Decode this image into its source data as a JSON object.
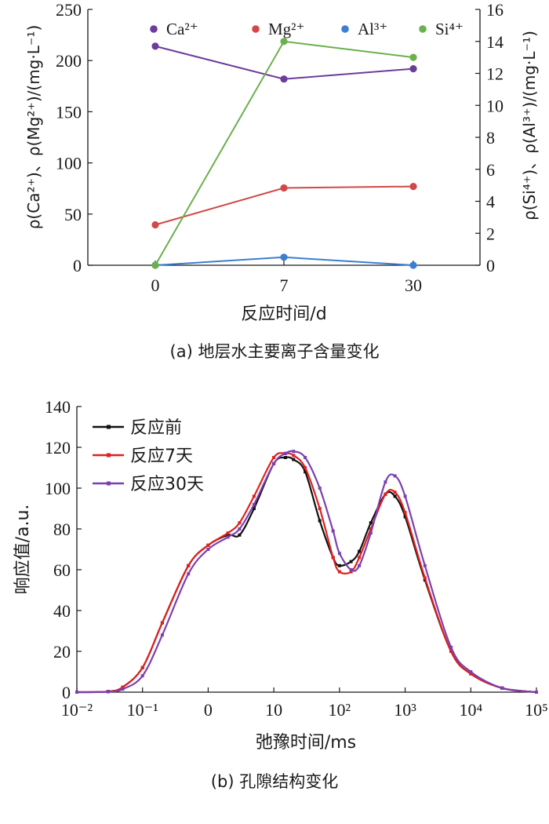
{
  "chart_data": [
    {
      "type": "line",
      "caption": "(a) 地层水主要离子含量变化",
      "xlabel": "反应时间/d",
      "ylabel_left": "ρ(Ca²⁺)、ρ(Mg²⁺)/(mg·L⁻¹)",
      "ylabel_right": "ρ(Si⁴⁺)、ρ(Al³⁺)/(mg·L⁻¹)",
      "categories": [
        "0",
        "7",
        "30"
      ],
      "ylim_left": [
        0,
        250
      ],
      "ylim_right": [
        0,
        16
      ],
      "yticks_left": [
        "0",
        "50",
        "100",
        "150",
        "200",
        "250"
      ],
      "yticks_right": [
        "0",
        "2",
        "4",
        "6",
        "8",
        "10",
        "12",
        "14",
        "16"
      ],
      "legend_position": "top",
      "series": [
        {
          "name": "Ca²⁺",
          "axis": "left",
          "color": "#6a3d9a",
          "values": [
            214,
            182,
            192
          ]
        },
        {
          "name": "Mg²⁺",
          "axis": "left",
          "color": "#d24848",
          "values": [
            39.5,
            75.5,
            77
          ]
        },
        {
          "name": "Al³⁺",
          "axis": "right",
          "color": "#3a7fd0",
          "values": [
            0,
            0.5,
            0
          ]
        },
        {
          "name": "Si⁴⁺",
          "axis": "right",
          "color": "#6ab04c",
          "values": [
            0,
            14,
            13
          ]
        }
      ]
    },
    {
      "type": "line",
      "caption": "(b) 孔隙结构变化",
      "xlabel": "弛豫时间/ms",
      "ylabel": "响应值/a.u.",
      "x_scale": "log",
      "xlim": [
        0.01,
        100000
      ],
      "ylim": [
        0,
        140
      ],
      "yticks": [
        "0",
        "20",
        "40",
        "60",
        "80",
        "100",
        "120",
        "140"
      ],
      "xticks": [
        "10⁻²",
        "10⁻¹",
        "0",
        "10",
        "10²",
        "10³",
        "10⁴",
        "10⁵"
      ],
      "legend_position": "top-left",
      "series": [
        {
          "name": "反应前",
          "color": "#111111",
          "x": [
            0.01,
            0.03,
            0.05,
            0.1,
            0.2,
            0.5,
            1,
            2,
            3,
            5,
            10,
            15,
            20,
            30,
            50,
            80,
            100,
            150,
            200,
            300,
            500,
            700,
            1000,
            2000,
            5000,
            10000,
            30000,
            100000
          ],
          "y": [
            0,
            0.3,
            2.5,
            12,
            34,
            62,
            72,
            77,
            77,
            90,
            112,
            115,
            114,
            108,
            84,
            66,
            62,
            64,
            69,
            83,
            97,
            96,
            86,
            55,
            20,
            9,
            2,
            0
          ]
        },
        {
          "name": "反应7天",
          "color": "#e02020",
          "x": [
            0.01,
            0.03,
            0.05,
            0.1,
            0.2,
            0.5,
            1,
            2,
            3,
            5,
            10,
            15,
            20,
            30,
            50,
            80,
            100,
            150,
            200,
            300,
            500,
            700,
            1000,
            2000,
            5000,
            10000,
            30000,
            100000
          ],
          "y": [
            0,
            0.3,
            2.5,
            12,
            34,
            62,
            72,
            78,
            83,
            96,
            115,
            117,
            116,
            110,
            90,
            66,
            59,
            59,
            66,
            80,
            97,
            98,
            88,
            56,
            20,
            9,
            2,
            0
          ]
        },
        {
          "name": "反应30天",
          "color": "#7b3fb0",
          "x": [
            0.01,
            0.03,
            0.05,
            0.1,
            0.2,
            0.5,
            1,
            2,
            3,
            5,
            10,
            15,
            20,
            30,
            50,
            80,
            100,
            150,
            200,
            300,
            500,
            700,
            1000,
            2000,
            5000,
            10000,
            30000,
            100000
          ],
          "y": [
            0,
            0.2,
            1.5,
            8,
            28,
            58,
            70,
            76,
            80,
            92,
            112,
            117,
            118,
            115,
            100,
            79,
            68,
            60,
            62,
            78,
            103,
            106,
            96,
            62,
            22,
            10,
            2,
            0
          ]
        }
      ]
    }
  ]
}
